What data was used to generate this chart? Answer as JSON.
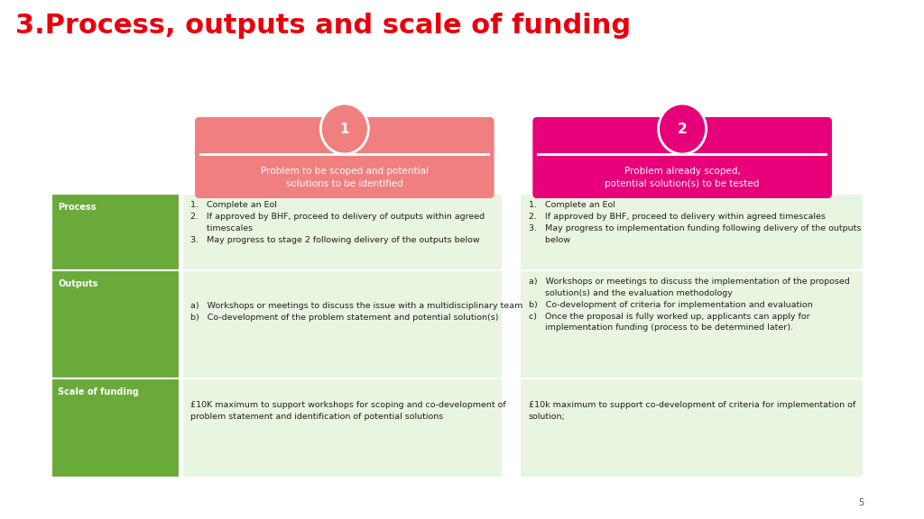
{
  "title": "3.Process, outputs and scale of funding",
  "title_color": "#e8000d",
  "title_fontsize": 22,
  "bg_color": "#ffffff",
  "stage1_color": "#f08080",
  "stage2_color": "#e8007a",
  "stage1_label": "Problem to be scoped and potential\nsolutions to be identified",
  "stage2_label": "Problem already scoped,\npotential solution(s) to be tested",
  "green_dark": "#6aaa3a",
  "green_light": "#e8f5e0",
  "row_labels": [
    "Process",
    "Outputs",
    "Scale of funding"
  ],
  "col1_process": "1.   Complete an EoI\n2.   If approved by BHF, proceed to delivery of outputs within agreed\n      timescales\n3.   May progress to stage 2 following delivery of the outputs below",
  "col2_process": "1.   Complete an EoI\n2.   If approved by BHF, proceed to delivery within agreed timescales\n3.   May progress to implementation funding following delivery of the outputs\n      below",
  "col1_outputs": "a)   Workshops or meetings to discuss the issue with a multidisciplinary team\nb)   Co-development of the problem statement and potential solution(s)",
  "col2_outputs": "a)   Workshops or meetings to discuss the implementation of the proposed\n      solution(s) and the evaluation methodology\nb)   Co-development of criteria for implementation and evaluation\nc)   Once the proposal is fully worked up, applicants can apply for\n      implementation funding (process to be determined later).",
  "col1_funding": "£10K maximum to support workshops for scoping and co-development of\nproblem statement and identification of potential solutions",
  "col2_funding": "£10k maximum to support co-development of criteria for implementation of\nsolution;",
  "page_number": "5"
}
